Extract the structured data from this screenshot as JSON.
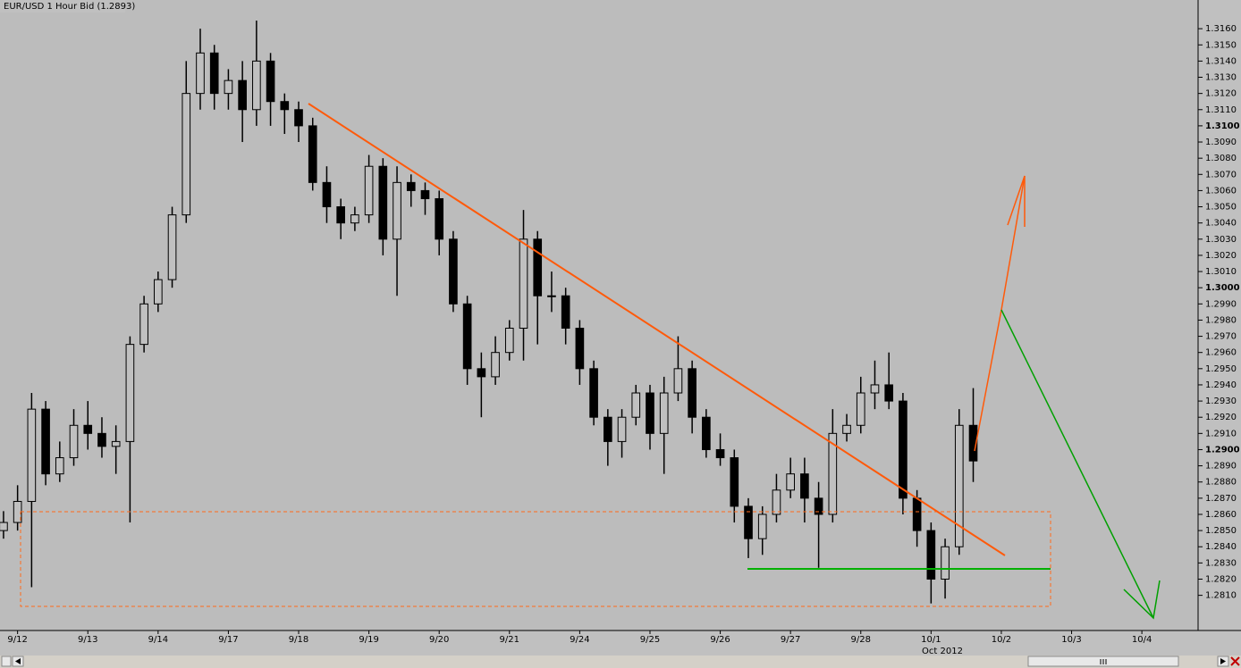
{
  "chart_data": {
    "type": "candlestick",
    "title": "EUR/USD 1 Hour Bid (1.2893)",
    "xlabel": "Oct 2012",
    "x": [
      -0.2,
      0,
      0.2,
      0.4,
      0.6,
      0.8,
      1,
      1.2,
      1.4,
      1.6,
      1.8,
      2,
      2.2,
      2.4,
      2.6,
      2.8,
      3,
      3.2,
      3.4,
      3.6,
      3.8,
      4,
      4.2,
      4.4,
      4.6,
      4.8,
      5,
      5.2,
      5.4,
      5.6,
      5.8,
      6,
      6.2,
      6.4,
      6.6,
      6.8,
      7,
      7.2,
      7.4,
      7.6,
      7.8,
      8,
      8.2,
      8.4,
      8.6,
      8.8,
      9,
      9.2,
      9.4,
      9.6,
      9.8,
      10,
      10.2,
      10.4,
      10.6,
      10.8,
      11,
      11.2,
      11.4,
      11.6,
      11.8,
      12,
      12.2,
      12.4,
      12.6,
      12.8,
      13,
      13.2,
      13.4,
      13.6
    ],
    "open": [
      1.285,
      1.2855,
      1.2868,
      1.2925,
      1.2885,
      1.2895,
      1.2915,
      1.291,
      1.2902,
      1.2905,
      1.2965,
      1.299,
      1.3005,
      1.3045,
      1.312,
      1.3145,
      1.312,
      1.3128,
      1.311,
      1.314,
      1.3115,
      1.311,
      1.31,
      1.3065,
      1.305,
      1.304,
      1.3045,
      1.3075,
      1.303,
      1.3065,
      1.306,
      1.3055,
      1.303,
      1.299,
      1.295,
      1.2945,
      1.296,
      1.2975,
      1.303,
      1.2995,
      1.2995,
      1.2975,
      1.295,
      1.292,
      1.2905,
      1.292,
      1.2935,
      1.291,
      1.2935,
      1.295,
      1.292,
      1.29,
      1.2895,
      1.2865,
      1.2845,
      1.286,
      1.2875,
      1.2885,
      1.287,
      1.286,
      1.291,
      1.2915,
      1.2935,
      1.294,
      1.293,
      1.287,
      1.285,
      1.282,
      1.284,
      1.2915
    ],
    "high": [
      1.2862,
      1.2878,
      1.2935,
      1.293,
      1.2905,
      1.2925,
      1.293,
      1.292,
      1.2915,
      1.297,
      1.2995,
      1.301,
      1.305,
      1.314,
      1.316,
      1.315,
      1.3135,
      1.314,
      1.3165,
      1.3145,
      1.312,
      1.3115,
      1.3105,
      1.3075,
      1.3055,
      1.305,
      1.3082,
      1.308,
      1.3075,
      1.307,
      1.3065,
      1.306,
      1.3035,
      1.2995,
      1.296,
      1.297,
      1.298,
      1.3048,
      1.3035,
      1.301,
      1.3,
      1.298,
      1.2955,
      1.2925,
      1.2925,
      1.294,
      1.294,
      1.2945,
      1.297,
      1.2955,
      1.2925,
      1.291,
      1.29,
      1.287,
      1.2865,
      1.2885,
      1.2895,
      1.2895,
      1.288,
      1.2925,
      1.2922,
      1.2945,
      1.2955,
      1.296,
      1.2935,
      1.2875,
      1.2855,
      1.2845,
      1.2925,
      1.2938
    ],
    "low": [
      1.2845,
      1.285,
      1.2815,
      1.2878,
      1.288,
      1.289,
      1.29,
      1.2895,
      1.2885,
      1.2855,
      1.296,
      1.2985,
      1.3,
      1.304,
      1.311,
      1.311,
      1.311,
      1.309,
      1.31,
      1.31,
      1.3095,
      1.309,
      1.306,
      1.304,
      1.303,
      1.3035,
      1.304,
      1.302,
      1.2995,
      1.305,
      1.3045,
      1.302,
      1.2985,
      1.294,
      1.292,
      1.294,
      1.2955,
      1.2955,
      1.2965,
      1.2985,
      1.2965,
      1.294,
      1.2915,
      1.289,
      1.2895,
      1.2915,
      1.29,
      1.2885,
      1.293,
      1.291,
      1.2895,
      1.289,
      1.2855,
      1.2833,
      1.2835,
      1.2855,
      1.287,
      1.2855,
      1.2827,
      1.2855,
      1.2905,
      1.291,
      1.2925,
      1.2925,
      1.286,
      1.284,
      1.2805,
      1.2808,
      1.2835,
      1.288
    ],
    "close": [
      1.2855,
      1.2868,
      1.2925,
      1.2885,
      1.2895,
      1.2915,
      1.291,
      1.2902,
      1.2905,
      1.2965,
      1.299,
      1.3005,
      1.3045,
      1.312,
      1.3145,
      1.312,
      1.3128,
      1.311,
      1.314,
      1.3115,
      1.311,
      1.31,
      1.3065,
      1.305,
      1.304,
      1.3045,
      1.3075,
      1.303,
      1.3065,
      1.306,
      1.3055,
      1.303,
      1.299,
      1.295,
      1.2945,
      1.296,
      1.2975,
      1.303,
      1.2995,
      1.2995,
      1.2975,
      1.295,
      1.292,
      1.2905,
      1.292,
      1.2935,
      1.291,
      1.2935,
      1.295,
      1.292,
      1.29,
      1.2895,
      1.2865,
      1.2845,
      1.286,
      1.2875,
      1.2885,
      1.287,
      1.286,
      1.291,
      1.2915,
      1.2935,
      1.294,
      1.293,
      1.287,
      1.285,
      1.282,
      1.284,
      1.2915,
      1.2893
    ],
    "up_color": "#c0c0c0",
    "down_color": "#000000",
    "wick_color": "#000000",
    "xlim": [
      -0.25,
      16.8
    ],
    "xticks": [
      {
        "value": 0,
        "label": "9/12"
      },
      {
        "value": 1,
        "label": "9/13"
      },
      {
        "value": 2,
        "label": "9/14"
      },
      {
        "value": 3,
        "label": "9/17"
      },
      {
        "value": 4,
        "label": "9/18"
      },
      {
        "value": 5,
        "label": "9/19"
      },
      {
        "value": 6,
        "label": "9/20"
      },
      {
        "value": 7,
        "label": "9/21"
      },
      {
        "value": 8,
        "label": "9/24"
      },
      {
        "value": 9,
        "label": "9/25"
      },
      {
        "value": 10,
        "label": "9/26"
      },
      {
        "value": 11,
        "label": "9/27"
      },
      {
        "value": 12,
        "label": "9/28"
      },
      {
        "value": 13,
        "label": "10/1"
      },
      {
        "value": 14,
        "label": "10/2"
      },
      {
        "value": 15,
        "label": "10/3"
      },
      {
        "value": 16,
        "label": "10/4"
      }
    ],
    "ylim": [
      1.2796,
      1.317
    ],
    "yticks": [
      {
        "value": 1.281,
        "label": "1.2810"
      },
      {
        "value": 1.282,
        "label": "1.2820"
      },
      {
        "value": 1.283,
        "label": "1.2830"
      },
      {
        "value": 1.284,
        "label": "1.2840"
      },
      {
        "value": 1.285,
        "label": "1.2850"
      },
      {
        "value": 1.286,
        "label": "1.2860"
      },
      {
        "value": 1.287,
        "label": "1.2870"
      },
      {
        "value": 1.288,
        "label": "1.2880"
      },
      {
        "value": 1.289,
        "label": "1.2890"
      },
      {
        "value": 1.29,
        "label": "1.2900"
      },
      {
        "value": 1.291,
        "label": "1.2910"
      },
      {
        "value": 1.292,
        "label": "1.2920"
      },
      {
        "value": 1.293,
        "label": "1.2930"
      },
      {
        "value": 1.294,
        "label": "1.2940"
      },
      {
        "value": 1.295,
        "label": "1.2950"
      },
      {
        "value": 1.296,
        "label": "1.2960"
      },
      {
        "value": 1.297,
        "label": "1.2970"
      },
      {
        "value": 1.298,
        "label": "1.2980"
      },
      {
        "value": 1.299,
        "label": "1.2990"
      },
      {
        "value": 1.3,
        "label": "1.3000"
      },
      {
        "value": 1.301,
        "label": "1.3010"
      },
      {
        "value": 1.302,
        "label": "1.3020"
      },
      {
        "value": 1.303,
        "label": "1.3030"
      },
      {
        "value": 1.304,
        "label": "1.3040"
      },
      {
        "value": 1.305,
        "label": "1.3050"
      },
      {
        "value": 1.306,
        "label": "1.3060"
      },
      {
        "value": 1.307,
        "label": "1.3070"
      },
      {
        "value": 1.308,
        "label": "1.3080"
      },
      {
        "value": 1.309,
        "label": "1.3090"
      },
      {
        "value": 1.31,
        "label": "1.3100"
      },
      {
        "value": 1.311,
        "label": "1.3110"
      },
      {
        "value": 1.312,
        "label": "1.3120"
      },
      {
        "value": 1.313,
        "label": "1.3130"
      },
      {
        "value": 1.314,
        "label": "1.3140"
      },
      {
        "value": 1.315,
        "label": "1.3150"
      },
      {
        "value": 1.316,
        "label": "1.3160"
      }
    ]
  }
}
